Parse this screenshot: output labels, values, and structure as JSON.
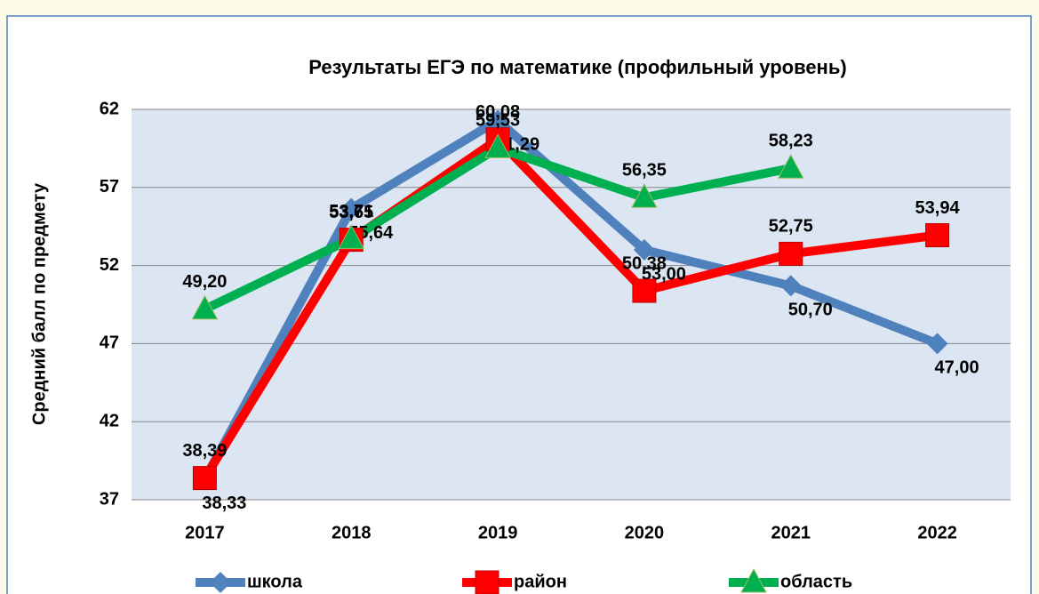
{
  "chart_data": {
    "type": "line",
    "title": "Результаты ЕГЭ по математике (профильный уровень)",
    "y_label": "Средний балл по предмету",
    "categories": [
      "2017",
      "2018",
      "2019",
      "2020",
      "2021",
      "2022"
    ],
    "series": [
      {
        "name": "школа",
        "color": "#4f81bd",
        "marker": "diamond",
        "values": [
          38.33,
          55.64,
          61.29,
          53.0,
          50.7,
          47.0
        ],
        "value_labels": [
          "38,33",
          "55,64",
          "61,29",
          "53,00",
          "50,70",
          "47,00"
        ]
      },
      {
        "name": "район",
        "color": "#ff0000",
        "marker": "square",
        "values": [
          38.39,
          53.65,
          60.08,
          50.38,
          52.75,
          53.94
        ],
        "value_labels": [
          "38,39",
          "53,65",
          "60,08",
          "50,38",
          "52,75",
          "53,94"
        ]
      },
      {
        "name": "область",
        "color": "#00b050",
        "marker": "triangle",
        "values": [
          49.2,
          53.71,
          59.53,
          56.35,
          58.23,
          null
        ],
        "value_labels": [
          "49,20",
          "53,71",
          "59,53",
          "56,35",
          "58,23",
          null
        ]
      }
    ],
    "ylim": [
      37,
      62
    ],
    "yticks": [
      37,
      42,
      47,
      52,
      57,
      62
    ],
    "grid": true,
    "legend": "bottom"
  }
}
